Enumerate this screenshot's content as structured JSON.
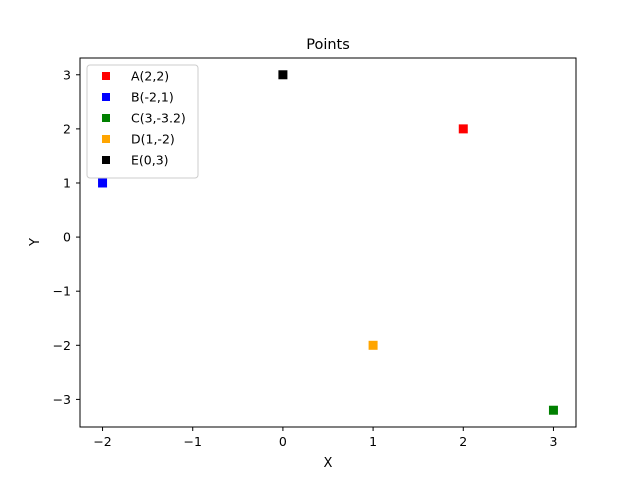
{
  "chart_data": {
    "type": "scatter",
    "title": "Points",
    "xlabel": "X",
    "ylabel": "Y",
    "xlim": [
      -2.25,
      3.25
    ],
    "ylim": [
      -3.51,
      3.31
    ],
    "xticks": [
      -2,
      -1,
      0,
      1,
      2,
      3
    ],
    "xtick_labels": [
      "−2",
      "−1",
      "0",
      "1",
      "2",
      "3"
    ],
    "yticks": [
      -3,
      -2,
      -1,
      0,
      1,
      2,
      3
    ],
    "ytick_labels": [
      "−3",
      "−2",
      "−1",
      "0",
      "1",
      "2",
      "3"
    ],
    "grid": false,
    "legend_position": "top-left",
    "marker": "square",
    "series": [
      {
        "name": "A(2,2)",
        "x": 2,
        "y": 2,
        "color": "#ff0000"
      },
      {
        "name": "B(-2,1)",
        "x": -2,
        "y": 1,
        "color": "#0000ff"
      },
      {
        "name": "C(3,-3.2)",
        "x": 3,
        "y": -3.2,
        "color": "#008000"
      },
      {
        "name": "D(1,-2)",
        "x": 1,
        "y": -2,
        "color": "#ffa500"
      },
      {
        "name": "E(0,3)",
        "x": 0,
        "y": 3,
        "color": "#000000"
      }
    ]
  }
}
